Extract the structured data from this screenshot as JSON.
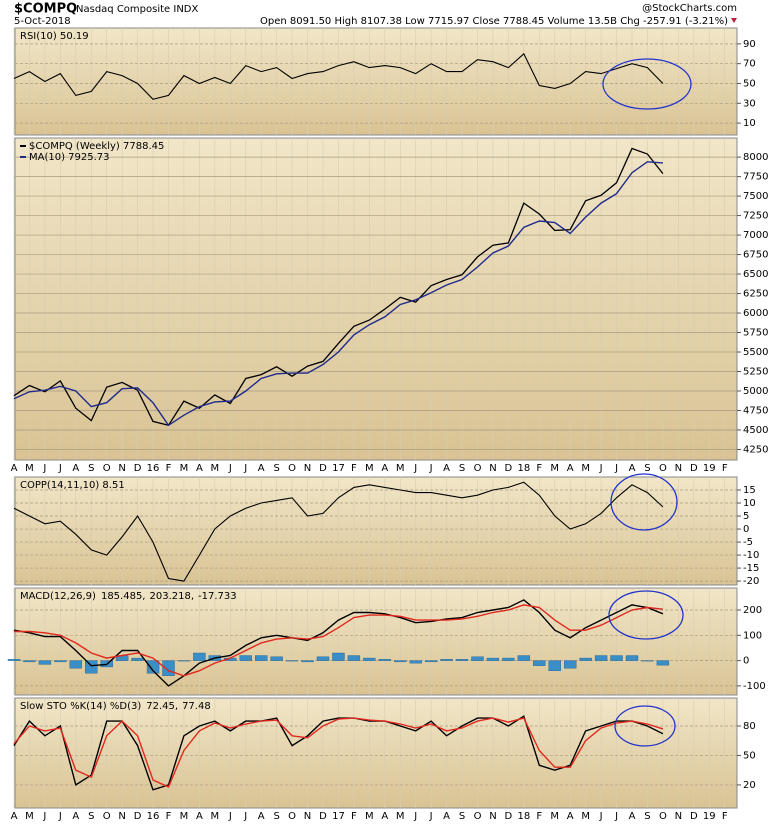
{
  "header": {
    "symbol": "$COMPQ",
    "name": "Nasdaq Composite INDX",
    "date": "5-Oct-2018",
    "quote": "Open 8091.50 High 8107.38 Low 7715.97 Close 7788.45 Volume 13.5B Chg -257.91 (-3.21%)",
    "watermark": "@StockCharts.com"
  },
  "chart_data": [
    {
      "type": "line",
      "title": "RSI(10) 50.19",
      "color": "#000000",
      "values": [
        55,
        62,
        52,
        60,
        38,
        42,
        62,
        58,
        50,
        34,
        38,
        58,
        50,
        56,
        50,
        68,
        62,
        66,
        55,
        60,
        62,
        68,
        72,
        66,
        68,
        66,
        60,
        70,
        62,
        62,
        74,
        72,
        66,
        80,
        48,
        45,
        50,
        62,
        60,
        65,
        70,
        66,
        50,
        null,
        null,
        null,
        null
      ],
      "ylim": [
        -2,
        106
      ],
      "yticks": [
        10,
        30,
        50,
        70,
        90
      ],
      "grid": true
    },
    {
      "type": "line",
      "categories": [
        "A",
        "M",
        "J",
        "J",
        "A",
        "S",
        "O",
        "N",
        "D",
        "16",
        "F",
        "M",
        "A",
        "M",
        "J",
        "J",
        "A",
        "S",
        "O",
        "N",
        "D",
        "17",
        "F",
        "M",
        "A",
        "M",
        "J",
        "J",
        "A",
        "S",
        "O",
        "N",
        "D",
        "18",
        "F",
        "M",
        "A",
        "M",
        "J",
        "J",
        "A",
        "S",
        "O",
        "N",
        "D",
        "19",
        "F"
      ],
      "series": [
        {
          "name": "$COMPQ (Weekly) 7788.45",
          "color": "#000000",
          "values": [
            4940,
            5070,
            4990,
            5130,
            4780,
            4620,
            5050,
            5110,
            5010,
            4610,
            4560,
            4870,
            4780,
            4950,
            4840,
            5160,
            5210,
            5310,
            5190,
            5320,
            5380,
            5610,
            5830,
            5910,
            6050,
            6200,
            6140,
            6350,
            6430,
            6490,
            6720,
            6870,
            6900,
            7410,
            7270,
            7060,
            7070,
            7440,
            7510,
            7670,
            8110,
            8040,
            7788,
            null,
            null,
            null,
            null
          ]
        },
        {
          "name": "MA(10) 7925.73",
          "color": "#1f2a8c",
          "values": [
            4900,
            4990,
            5010,
            5060,
            5000,
            4800,
            4850,
            5030,
            5040,
            4850,
            4560,
            4690,
            4800,
            4860,
            4870,
            5000,
            5160,
            5220,
            5230,
            5230,
            5340,
            5500,
            5720,
            5850,
            5950,
            6110,
            6170,
            6260,
            6360,
            6430,
            6590,
            6770,
            6860,
            7100,
            7180,
            7160,
            7020,
            7230,
            7410,
            7530,
            7800,
            7940,
            7926,
            null,
            null,
            null,
            null
          ]
        }
      ],
      "ylim": [
        4115,
        8245
      ],
      "yticks": [
        4250,
        4500,
        4750,
        5000,
        5250,
        5500,
        5750,
        6000,
        6250,
        6500,
        6750,
        7000,
        7250,
        7500,
        7750,
        8000
      ],
      "grid": true
    },
    {
      "type": "line",
      "title": "COPP(14,11,10) 8.51",
      "color": "#000000",
      "values": [
        8,
        5,
        2,
        3,
        -2,
        -8,
        -10,
        -3,
        5,
        -5,
        -19,
        -20,
        -10,
        0,
        5,
        8,
        10,
        11,
        12,
        5,
        6,
        12,
        16,
        17,
        16,
        15,
        14,
        14,
        13,
        12,
        13,
        15,
        16,
        18,
        13,
        5,
        0,
        2,
        6,
        12,
        17,
        14,
        8.5,
        null,
        null,
        null,
        null
      ],
      "ylim": [
        -21.5,
        20
      ],
      "yticks": [
        -20,
        -15,
        -10,
        -5,
        0,
        5,
        10,
        15
      ],
      "grid": true
    },
    {
      "type": "line",
      "title": "MACD(12,26,9)",
      "series": [
        {
          "name": "185.485,",
          "color": "#000000",
          "values": [
            120,
            110,
            95,
            95,
            40,
            -20,
            -15,
            40,
            40,
            -40,
            -100,
            -60,
            -10,
            10,
            20,
            60,
            90,
            100,
            90,
            80,
            110,
            160,
            190,
            190,
            185,
            170,
            150,
            155,
            165,
            170,
            190,
            200,
            210,
            240,
            190,
            120,
            90,
            130,
            160,
            190,
            220,
            210,
            185,
            null,
            null,
            null,
            null
          ]
        },
        {
          "name": "203.218,",
          "color": "#e0281e",
          "values": [
            115,
            115,
            110,
            100,
            70,
            30,
            10,
            20,
            30,
            10,
            -40,
            -60,
            -40,
            -10,
            10,
            40,
            70,
            85,
            90,
            85,
            95,
            130,
            170,
            180,
            180,
            175,
            160,
            160,
            160,
            165,
            175,
            190,
            200,
            220,
            210,
            160,
            120,
            120,
            140,
            170,
            200,
            210,
            203,
            null,
            null,
            null,
            null
          ]
        },
        {
          "name": "-17.733",
          "color": "#3a8ec8",
          "style": "bar",
          "values": [
            5,
            -5,
            -15,
            -5,
            -30,
            -50,
            -25,
            20,
            10,
            -50,
            -60,
            0,
            30,
            20,
            10,
            20,
            20,
            15,
            0,
            -5,
            15,
            30,
            20,
            10,
            5,
            -5,
            -10,
            -5,
            5,
            5,
            15,
            10,
            10,
            20,
            -20,
            -40,
            -30,
            10,
            20,
            20,
            20,
            0,
            -18,
            null,
            null,
            null,
            null
          ]
        }
      ],
      "ylim": [
        -136,
        287
      ],
      "yticks": [
        -100,
        0,
        100,
        200
      ],
      "grid": true
    },
    {
      "type": "line",
      "title": "Slow STO %K(14) %D(3)",
      "categories": [
        "A",
        "M",
        "J",
        "J",
        "A",
        "S",
        "O",
        "N",
        "D",
        "16",
        "F",
        "M",
        "A",
        "M",
        "J",
        "J",
        "A",
        "S",
        "O",
        "N",
        "D",
        "17",
        "F",
        "M",
        "A",
        "M",
        "J",
        "J",
        "A",
        "S",
        "O",
        "N",
        "D",
        "18",
        "F",
        "M",
        "A",
        "M",
        "J",
        "J",
        "A",
        "S",
        "O",
        "N",
        "D",
        "19",
        "F"
      ],
      "series": [
        {
          "name": "72.45,",
          "color": "#000000",
          "values": [
            60,
            85,
            70,
            80,
            20,
            30,
            85,
            85,
            60,
            15,
            20,
            70,
            80,
            85,
            75,
            85,
            85,
            88,
            60,
            70,
            85,
            88,
            88,
            85,
            85,
            80,
            75,
            85,
            70,
            80,
            88,
            88,
            80,
            90,
            40,
            35,
            40,
            75,
            80,
            85,
            85,
            80,
            72,
            null,
            null,
            null,
            null
          ]
        },
        {
          "name": "77.48",
          "color": "#e0281e",
          "values": [
            62,
            80,
            75,
            78,
            35,
            28,
            70,
            85,
            70,
            25,
            18,
            55,
            75,
            83,
            78,
            82,
            85,
            86,
            70,
            68,
            80,
            87,
            88,
            86,
            85,
            82,
            78,
            82,
            75,
            78,
            85,
            88,
            84,
            88,
            55,
            38,
            38,
            65,
            78,
            83,
            85,
            82,
            77,
            null,
            null,
            null,
            null
          ]
        }
      ],
      "ylim": [
        -3.5,
        108.5
      ],
      "yticks": [
        20,
        50,
        80
      ],
      "grid": true
    }
  ]
}
